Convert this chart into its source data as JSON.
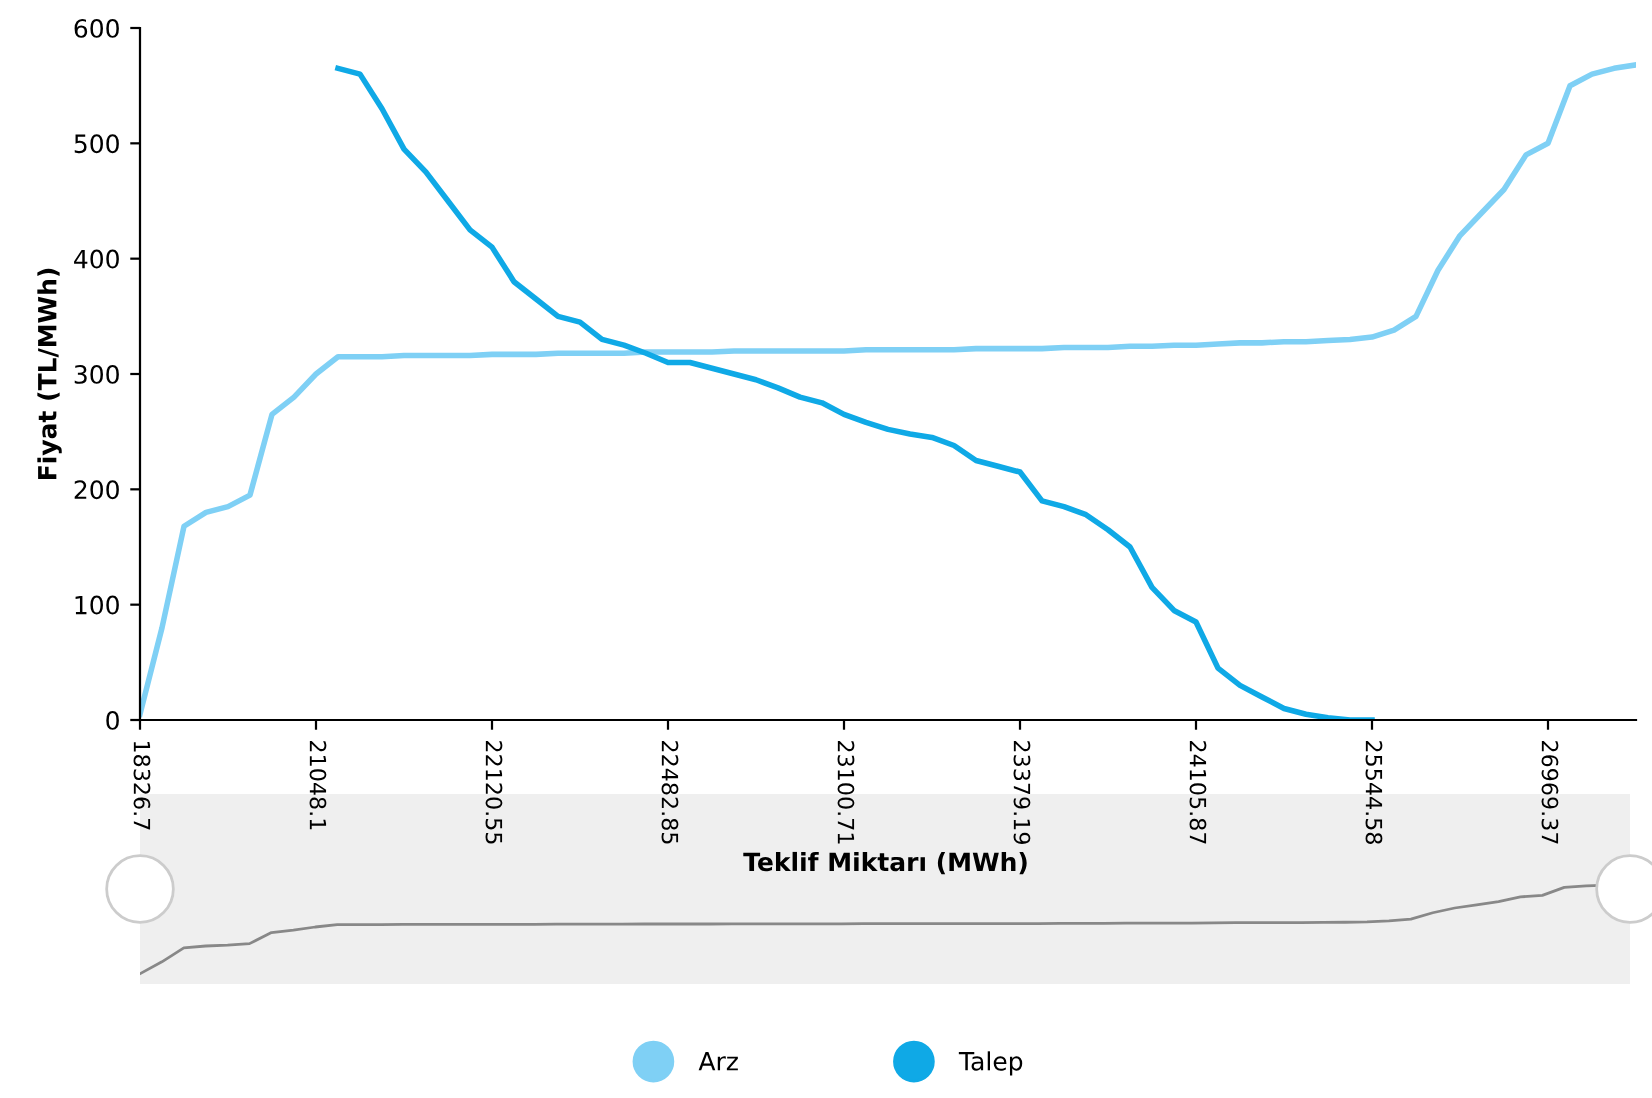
{
  "chart_data": {
    "type": "line",
    "xlabel": "Teklif Miktarı (MWh)",
    "ylabel": "Fiyat (TL/MWh)",
    "categories": [
      "18326.7",
      null,
      null,
      null,
      null,
      null,
      null,
      null,
      "21048.1",
      null,
      null,
      null,
      null,
      null,
      null,
      null,
      "22120.55",
      null,
      null,
      null,
      null,
      null,
      null,
      null,
      "22482.85",
      null,
      null,
      null,
      null,
      null,
      null,
      null,
      "23100.71",
      null,
      null,
      null,
      null,
      null,
      null,
      null,
      "23379.19",
      null,
      null,
      null,
      null,
      null,
      null,
      null,
      "24105.87",
      null,
      null,
      null,
      null,
      null,
      null,
      null,
      "25544.58",
      null,
      null,
      null,
      null,
      null,
      null,
      null,
      "26969.37",
      null,
      null,
      null,
      null
    ],
    "series": [
      {
        "name": "Arz",
        "color": "#7fd0f5",
        "values": [
          5,
          80,
          168,
          180,
          185,
          195,
          265,
          280,
          300,
          315,
          315,
          315,
          316,
          316,
          316,
          316,
          317,
          317,
          317,
          318,
          318,
          318,
          318,
          319,
          319,
          319,
          319,
          320,
          320,
          320,
          320,
          320,
          320,
          321,
          321,
          321,
          321,
          321,
          322,
          322,
          322,
          322,
          323,
          323,
          323,
          324,
          324,
          325,
          325,
          326,
          327,
          327,
          328,
          328,
          329,
          330,
          332,
          338,
          350,
          390,
          420,
          440,
          460,
          490,
          500,
          550,
          560,
          565,
          568
        ]
      },
      {
        "name": "Talep",
        "color": "#0fa9e6",
        "values": [
          null,
          null,
          null,
          null,
          null,
          null,
          null,
          null,
          null,
          565,
          560,
          530,
          495,
          475,
          450,
          425,
          410,
          380,
          365,
          350,
          345,
          330,
          325,
          318,
          310,
          310,
          305,
          300,
          295,
          288,
          280,
          275,
          265,
          258,
          252,
          248,
          245,
          238,
          225,
          220,
          215,
          190,
          185,
          178,
          165,
          150,
          115,
          95,
          85,
          45,
          30,
          20,
          10,
          5,
          2,
          0,
          0,
          null,
          null,
          null,
          null,
          null,
          null,
          null,
          null,
          null,
          null,
          null,
          null
        ]
      }
    ],
    "ylim": [
      0,
      600
    ],
    "yticks": [
      0,
      100,
      200,
      300,
      400,
      500,
      600
    ],
    "grid": false,
    "legend": "bottom",
    "marker": "none",
    "line_style": "solid"
  }
}
